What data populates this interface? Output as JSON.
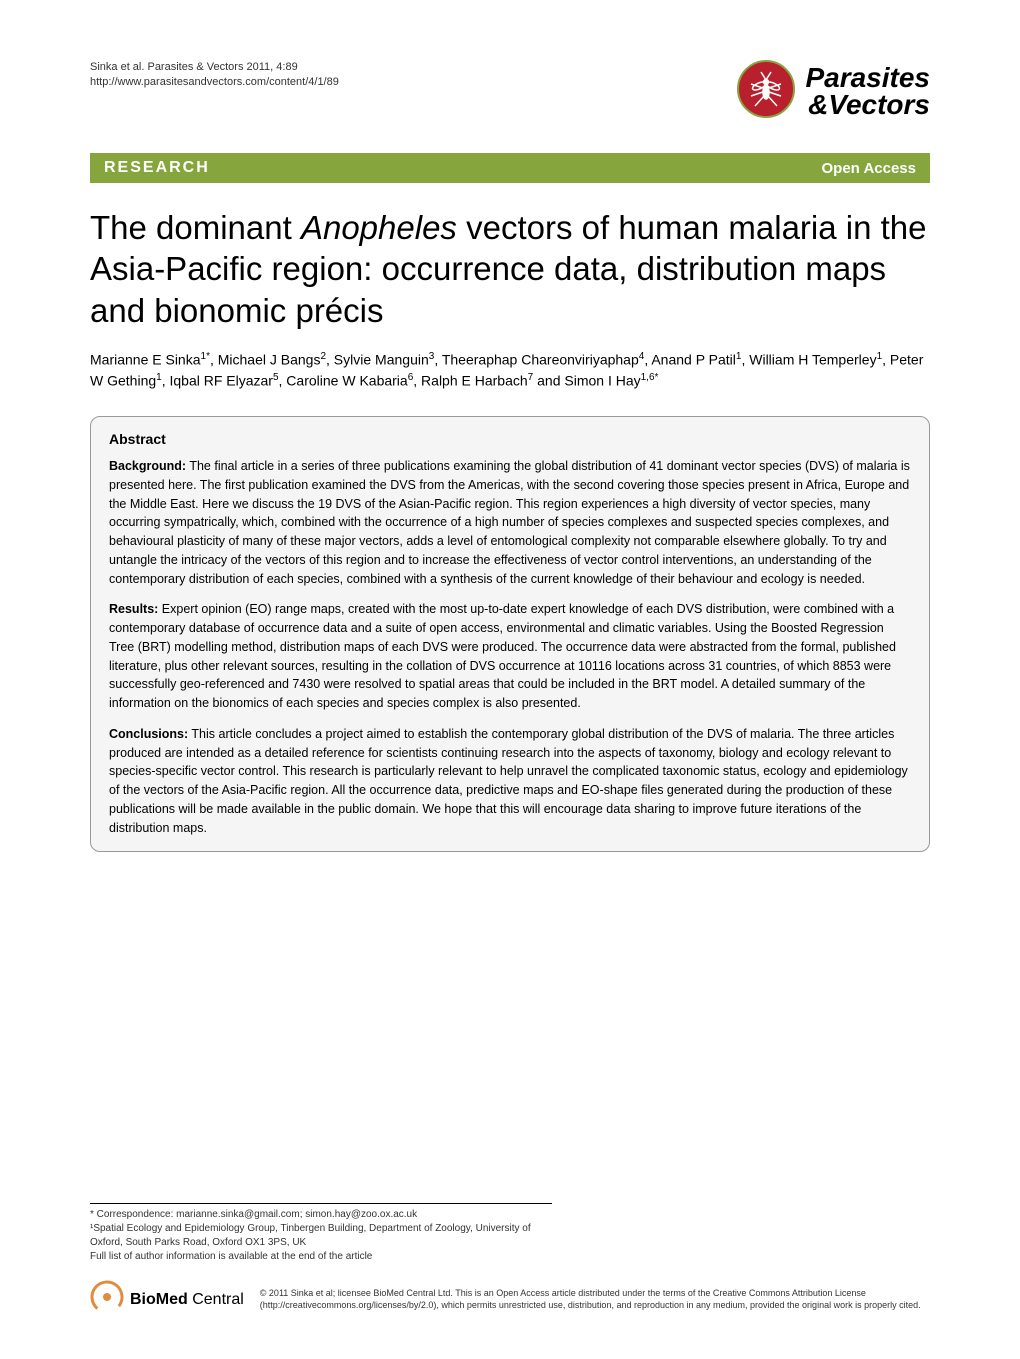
{
  "header": {
    "citation_line1": "Sinka et al. Parasites & Vectors 2011, 4:89",
    "citation_line2": "http://www.parasitesandvectors.com/content/4/1/89",
    "journal_name_line1": "Parasites",
    "journal_name_line2": "&Vectors",
    "logo_bg_color": "#b9202e",
    "logo_accent_color": "#86a53c"
  },
  "research_bar": {
    "label": "RESEARCH",
    "open_access": "Open Access",
    "bg_color": "#86a53c",
    "text_color": "#ffffff"
  },
  "title": {
    "pre": "The dominant ",
    "italic": "Anopheles",
    "post": " vectors of human malaria in the Asia-Pacific region: occurrence data, distribution maps and bionomic précis",
    "fontsize": 33,
    "color": "#000000"
  },
  "authors": {
    "list": [
      {
        "name": "Marianne E Sinka",
        "aff": "1*"
      },
      {
        "name": "Michael J Bangs",
        "aff": "2"
      },
      {
        "name": "Sylvie Manguin",
        "aff": "3"
      },
      {
        "name": "Theeraphap Chareonviriyaphap",
        "aff": "4"
      },
      {
        "name": "Anand P Patil",
        "aff": "1"
      },
      {
        "name": "William H Temperley",
        "aff": "1"
      },
      {
        "name": "Peter W Gething",
        "aff": "1"
      },
      {
        "name": "Iqbal RF Elyazar",
        "aff": "5"
      },
      {
        "name": "Caroline W Kabaria",
        "aff": "6"
      },
      {
        "name": "Ralph E Harbach",
        "aff": "7"
      },
      {
        "name": "Simon I Hay",
        "aff": "1,6*"
      }
    ],
    "fontsize": 14
  },
  "abstract": {
    "heading": "Abstract",
    "box_bg": "#f5f5f5",
    "box_border": "#999999",
    "fontsize": 12.5,
    "sections": [
      {
        "label": "Background:",
        "text": " The final article in a series of three publications examining the global distribution of 41 dominant vector species (DVS) of malaria is presented here. The first publication examined the DVS from the Americas, with the second covering those species present in Africa, Europe and the Middle East. Here we discuss the 19 DVS of the Asian-Pacific region. This region experiences a high diversity of vector species, many occurring sympatrically, which, combined with the occurrence of a high number of species complexes and suspected species complexes, and behavioural plasticity of many of these major vectors, adds a level of entomological complexity not comparable elsewhere globally. To try and untangle the intricacy of the vectors of this region and to increase the effectiveness of vector control interventions, an understanding of the contemporary distribution of each species, combined with a synthesis of the current knowledge of their behaviour and ecology is needed."
      },
      {
        "label": "Results:",
        "text": " Expert opinion (EO) range maps, created with the most up-to-date expert knowledge of each DVS distribution, were combined with a contemporary database of occurrence data and a suite of open access, environmental and climatic variables. Using the Boosted Regression Tree (BRT) modelling method, distribution maps of each DVS were produced. The occurrence data were abstracted from the formal, published literature, plus other relevant sources, resulting in the collation of DVS occurrence at 10116 locations across 31 countries, of which 8853 were successfully geo-referenced and 7430 were resolved to spatial areas that could be included in the BRT model. A detailed summary of the information on the bionomics of each species and species complex is also presented."
      },
      {
        "label": "Conclusions:",
        "text": " This article concludes a project aimed to establish the contemporary global distribution of the DVS of malaria. The three articles produced are intended as a detailed reference for scientists continuing research into the aspects of taxonomy, biology and ecology relevant to species-specific vector control. This research is particularly relevant to help unravel the complicated taxonomic status, ecology and epidemiology of the vectors of the Asia-Pacific region. All the occurrence data, predictive maps and EO-shape files generated during the production of these publications will be made available in the public domain. We hope that this will encourage data sharing to improve future iterations of the distribution maps."
      }
    ]
  },
  "footer": {
    "correspondence_lines": [
      "* Correspondence: marianne.sinka@gmail.com; simon.hay@zoo.ox.ac.uk",
      "¹Spatial Ecology and Epidemiology Group, Tinbergen Building, Department of Zoology, University of Oxford, South Parks Road, Oxford OX1 3PS, UK",
      "Full list of author information is available at the end of the article"
    ],
    "bmc_label": "BioMed Central",
    "bmc_logo_color": "#e28b3e",
    "license": "© 2011 Sinka et al; licensee BioMed Central Ltd. This is an Open Access article distributed under the terms of the Creative Commons Attribution License (http://creativecommons.org/licenses/by/2.0), which permits unrestricted use, distribution, and reproduction in any medium, provided the original work is properly cited."
  }
}
